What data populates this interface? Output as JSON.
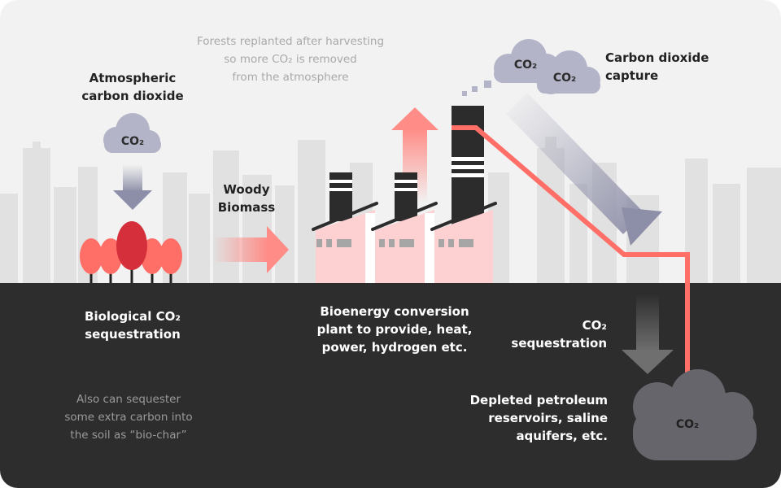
{
  "labels": {
    "atmospheric": [
      "Atmospheric",
      "carbon dioxide"
    ],
    "forests_note": [
      "Forests replanted after harvesting",
      "so more CO₂ is removed",
      "from the atmosphere"
    ],
    "woody_biomass": [
      "Woody",
      "Biomass"
    ],
    "capture": [
      "Carbon dioxide",
      "capture"
    ],
    "biological": [
      "Biological CO₂",
      "sequestration"
    ],
    "bioenergy": [
      "Bioenergy conversion",
      "plant to provide, heat,",
      "power, hydrogen etc."
    ],
    "co2_sequestration": [
      "CO₂",
      "sequestration"
    ],
    "biochar_note": [
      "Also can sequester",
      "some extra carbon into",
      "the soil as “bio-char”"
    ],
    "reservoirs": [
      "Depleted petroleum",
      "reservoirs, saline",
      "aquifers, etc."
    ]
  },
  "clouds": {
    "atmospheric": "CO₂",
    "capture_left": "CO₂",
    "capture_right": "CO₂",
    "underground": "CO₂"
  },
  "colors": {
    "sky": "#f2f2f2",
    "ground": "#2d2d2d",
    "skyline": "#e0e0e0",
    "coral": "#ff7b74",
    "coral_dark": "#d9353f",
    "pink_light": "#fdd1d1",
    "cloud_purple": "#b3b4c7",
    "cloud_gray": "#66656b",
    "arrow_purple": "#8d8ea7",
    "chimney": "#2c2c2c"
  }
}
